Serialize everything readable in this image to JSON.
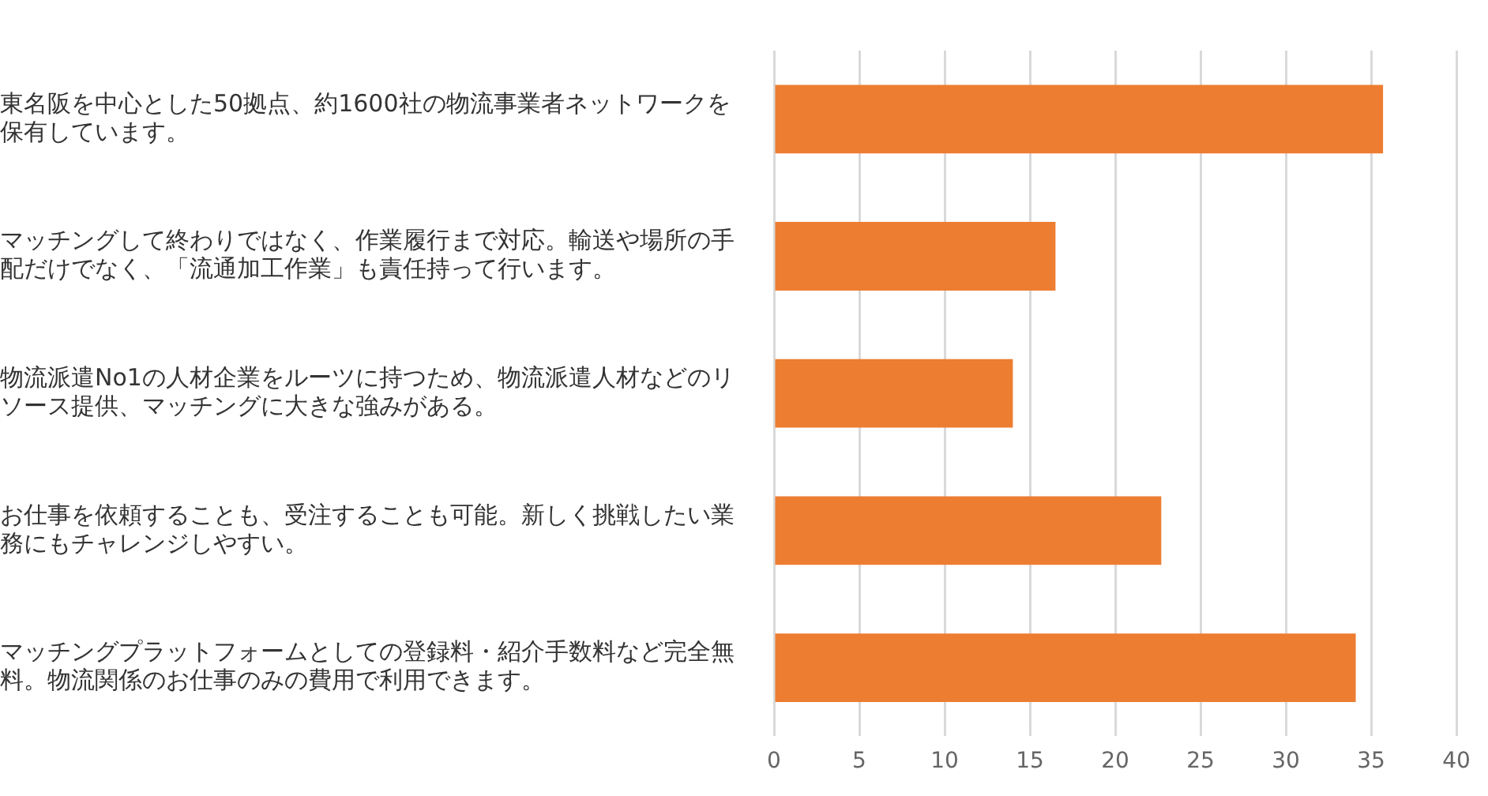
{
  "chart_data": {
    "type": "bar",
    "orientation": "horizontal",
    "categories": [
      "東名阪を中心とした50拠点、約1600社の物流事業者ネットワークを保有しています。",
      "マッチングして終わりではなく、作業履行まで対応。輸送や場所の手配だけでなく、「流通加工作業」も責任持って行います。",
      "物流派遣No1の人材企業をルーツに持つため、物流派遣人材などのリソース提供、マッチングに大きな強みがある。",
      "お仕事を依頼することも、受注することも可能。新しく挑戦したい業務にもチャレンジしやすい。",
      "マッチングプラットフォームとしての登録料・紹介手数料など完全無料。物流関係のお仕事のみの費用で利用できます。"
    ],
    "values": [
      35.7,
      16.5,
      14.0,
      22.7,
      34.1
    ],
    "color": "#ed7d31",
    "xlim": [
      0,
      40
    ],
    "xticks": [
      0,
      5,
      10,
      15,
      20,
      25,
      30,
      35,
      40
    ],
    "grid": "x"
  }
}
